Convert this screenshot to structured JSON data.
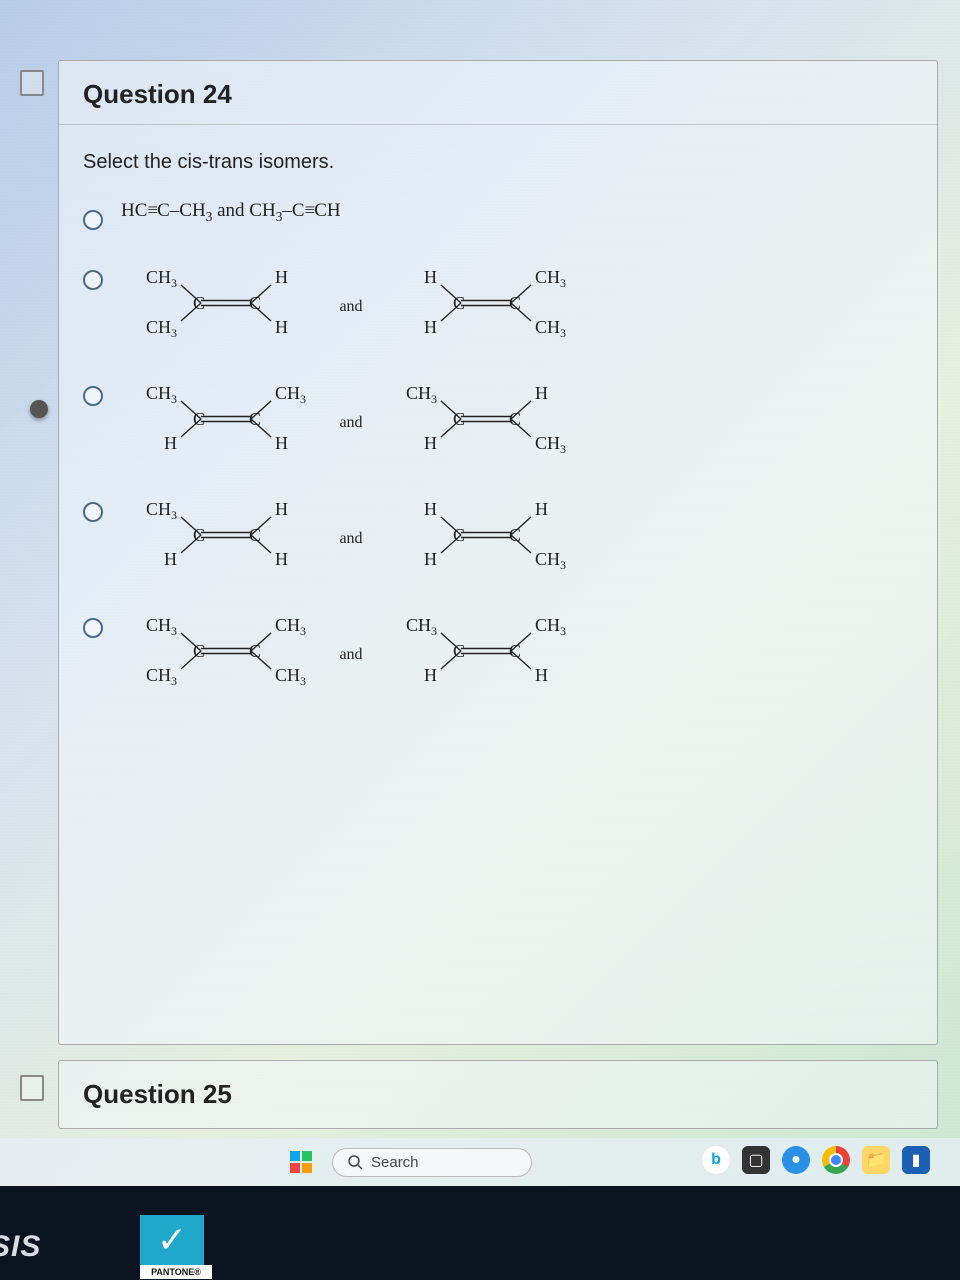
{
  "question_header": "Question 24",
  "next_question_header": "Question 25",
  "prompt": "Select the cis-trans isomers.",
  "option1_text": "HC≡C–CH₃ and CH₃–C≡CH",
  "and_label": "and",
  "molecules": {
    "opt2": {
      "left": {
        "tl": "CH₃",
        "tr": "H",
        "bl": "CH₃",
        "br": "H"
      },
      "right": {
        "tl": "H",
        "tr": "CH₃",
        "bl": "H",
        "br": "CH₃"
      }
    },
    "opt3": {
      "left": {
        "tl": "CH₃",
        "tr": "CH₃",
        "bl": "H",
        "br": "H"
      },
      "right": {
        "tl": "CH₃",
        "tr": "H",
        "bl": "H",
        "br": "CH₃"
      }
    },
    "opt4": {
      "left": {
        "tl": "CH₃",
        "tr": "H",
        "bl": "H",
        "br": "H"
      },
      "right": {
        "tl": "H",
        "tr": "H",
        "bl": "H",
        "br": "CH₃"
      }
    },
    "opt5": {
      "left": {
        "tl": "CH₃",
        "tr": "CH₃",
        "bl": "CH₃",
        "br": "CH₃"
      },
      "right": {
        "tl": "CH₃",
        "tr": "CH₃",
        "bl": "H",
        "br": "H"
      }
    }
  },
  "search_placeholder": "Search",
  "taskbar_brand": "SIS",
  "pantone_label": "PANTONE®",
  "colors": {
    "molecule_line": "#222222",
    "molecule_text": "#222222"
  }
}
